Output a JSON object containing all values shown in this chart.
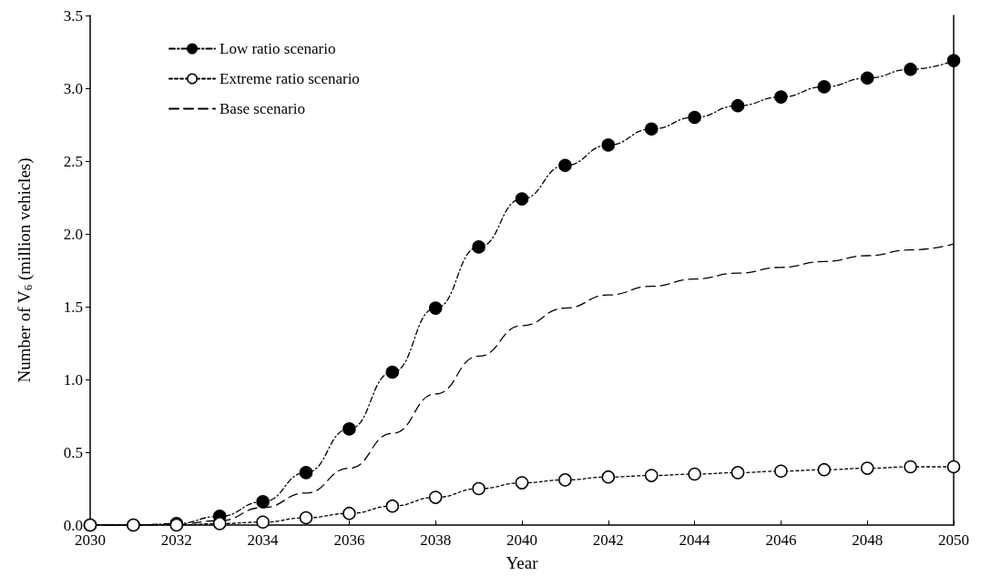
{
  "chart_data": {
    "type": "line",
    "xlabel": "Year",
    "ylabel": "Number of V$_{6}$ (million vehicles)",
    "x": [
      2030,
      2031,
      2032,
      2033,
      2034,
      2035,
      2036,
      2037,
      2038,
      2039,
      2040,
      2041,
      2042,
      2043,
      2044,
      2045,
      2046,
      2047,
      2048,
      2049,
      2050
    ],
    "xlim": [
      2030,
      2050
    ],
    "xticks": [
      2030,
      2032,
      2034,
      2036,
      2038,
      2040,
      2042,
      2044,
      2046,
      2048,
      2050
    ],
    "ylim": [
      0,
      3.5
    ],
    "yticks": [
      {
        "value": 0,
        "label": "0.0"
      },
      {
        "value": 0.5,
        "label": "0.5"
      },
      {
        "value": 1,
        "label": "1.0"
      },
      {
        "value": 1.5,
        "label": "1.5"
      },
      {
        "value": 2,
        "label": "2.0"
      },
      {
        "value": 2.5,
        "label": "2.5"
      },
      {
        "value": 3,
        "label": "3.0"
      },
      {
        "value": 3.5,
        "label": "3.5"
      }
    ],
    "grid": false,
    "legend": "top left",
    "series": [
      {
        "name": "Low ratio scenario",
        "color": "#000000",
        "marker": "circle",
        "line_style": "dashdot",
        "values": [
          0,
          0,
          0.01,
          0.06,
          0.16,
          0.36,
          0.66,
          1.05,
          1.49,
          1.91,
          2.24,
          2.47,
          2.61,
          2.72,
          2.8,
          2.88,
          2.94,
          3.01,
          3.07,
          3.13,
          3.19
        ]
      },
      {
        "name": "Extreme ratio scenario",
        "color": "#000000",
        "marker": "circle",
        "line_style": "dotted",
        "values": [
          0,
          0,
          0,
          0.01,
          0.02,
          0.05,
          0.08,
          0.13,
          0.19,
          0.25,
          0.29,
          0.31,
          0.33,
          0.34,
          0.35,
          0.36,
          0.37,
          0.38,
          0.39,
          0.4,
          0.4
        ]
      },
      {
        "name": "Base scenario",
        "color": "#000000",
        "marker": "none",
        "line_style": "dashed",
        "values": [
          0,
          0,
          0.005,
          0.03,
          0.12,
          0.22,
          0.39,
          0.63,
          0.9,
          1.16,
          1.37,
          1.49,
          1.58,
          1.64,
          1.69,
          1.73,
          1.77,
          1.81,
          1.85,
          1.89,
          1.93
        ]
      }
    ]
  }
}
